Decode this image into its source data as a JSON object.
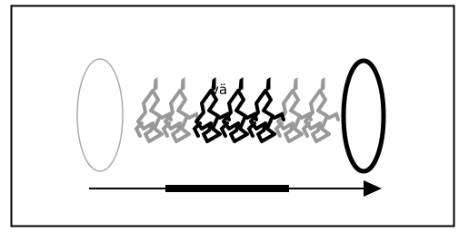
{
  "label": "vä"
}
